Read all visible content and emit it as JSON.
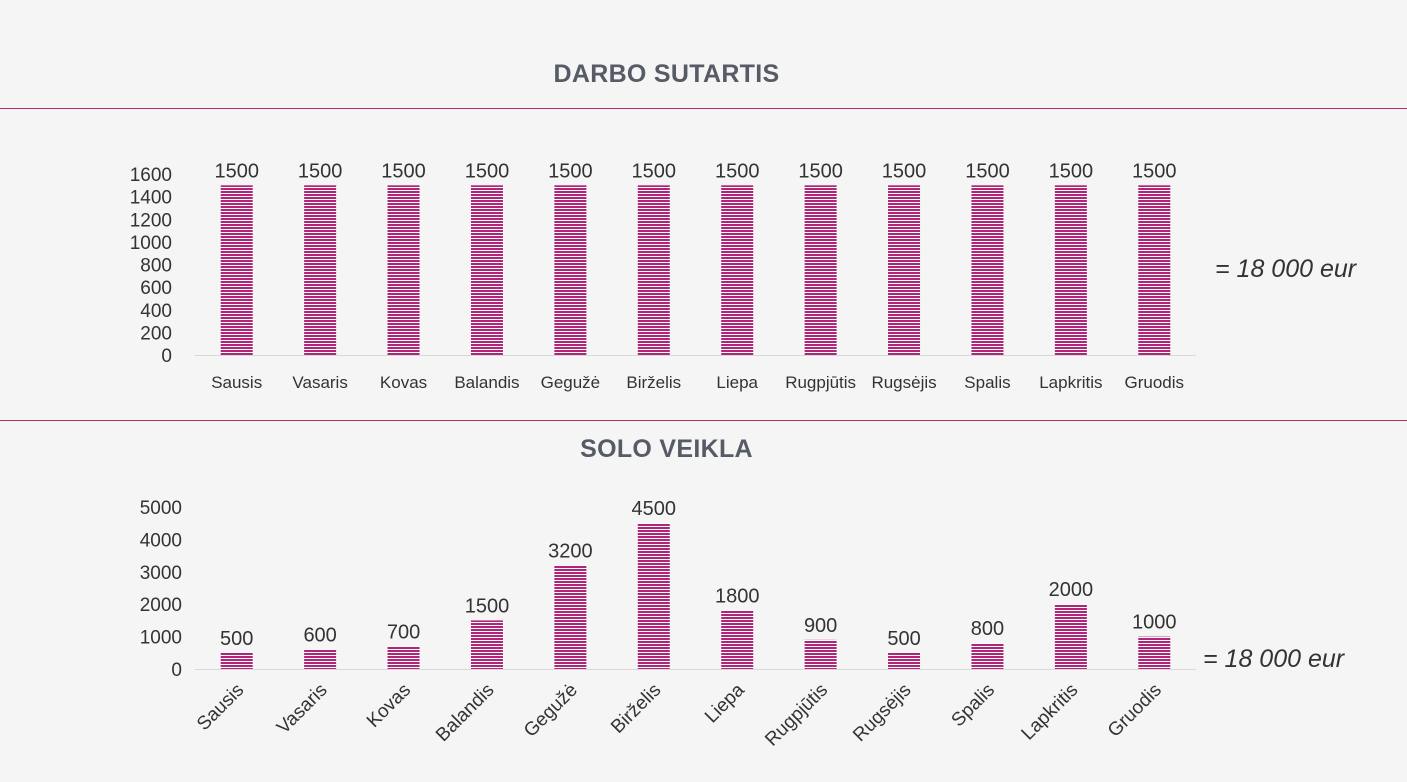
{
  "charts": [
    {
      "title": "DARBO SUTARTIS",
      "total": "= 18 000 eur"
    },
    {
      "title": "SOLO VEIKLA",
      "total": "= 18 000 eur"
    }
  ],
  "colors": {
    "bar": "#b0247a",
    "bar_stripe": "#ffffff",
    "rule": "#b5306f",
    "text": "#333333",
    "title": "#575b66"
  },
  "chart_data": [
    {
      "type": "bar",
      "title": "DARBO SUTARTIS",
      "categories": [
        "Sausis",
        "Vasaris",
        "Kovas",
        "Balandis",
        "Gegužė",
        "Birželis",
        "Liepa",
        "Rugpjūtis",
        "Rugsėjis",
        "Spalis",
        "Lapkritis",
        "Gruodis"
      ],
      "values": [
        1500,
        1500,
        1500,
        1500,
        1500,
        1500,
        1500,
        1500,
        1500,
        1500,
        1500,
        1500
      ],
      "yticks": [
        0,
        200,
        400,
        600,
        800,
        1000,
        1200,
        1400,
        1600
      ],
      "ylim": [
        0,
        1600
      ],
      "data_labels": true,
      "grid": false,
      "xlabel": "",
      "ylabel": ""
    },
    {
      "type": "bar",
      "title": "SOLO VEIKLA",
      "categories": [
        "Sausis",
        "Vasaris",
        "Kovas",
        "Balandis",
        "Gegužė",
        "Birželis",
        "Liepa",
        "Rugpjūtis",
        "Rugsėjis",
        "Spalis",
        "Lapkritis",
        "Gruodis"
      ],
      "values": [
        500,
        600,
        700,
        1500,
        3200,
        4500,
        1800,
        900,
        500,
        800,
        2000,
        1000
      ],
      "yticks": [
        0,
        1000,
        2000,
        3000,
        4000,
        5000
      ],
      "ylim": [
        0,
        5000
      ],
      "data_labels": true,
      "grid": false,
      "xlabel": "",
      "ylabel": ""
    }
  ]
}
